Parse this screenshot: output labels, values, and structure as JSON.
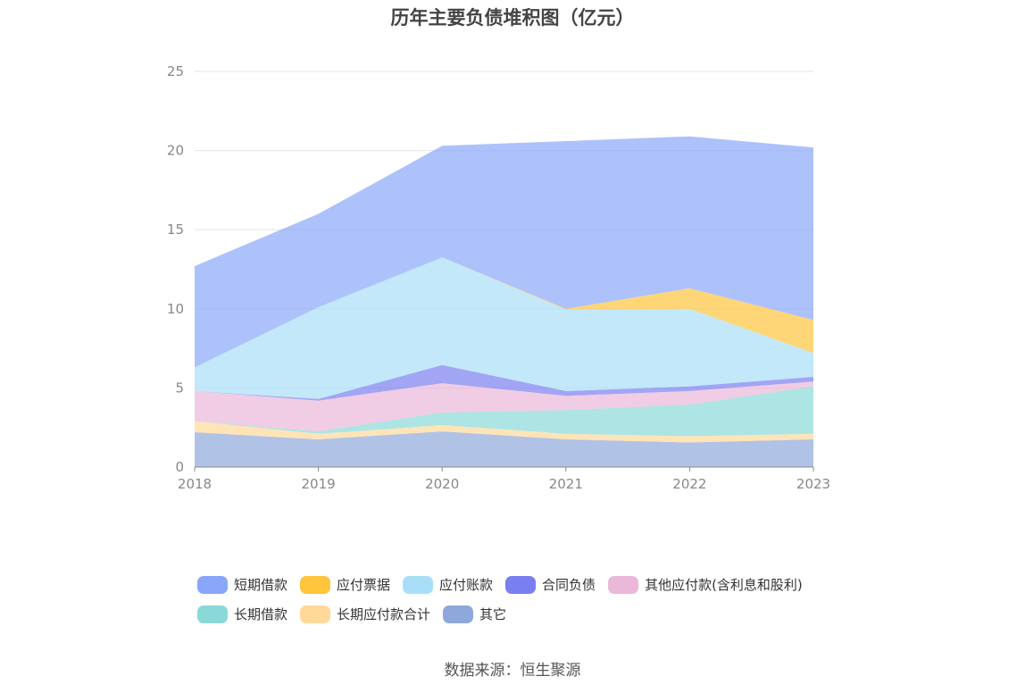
{
  "title": "历年主要负债堆积图（亿元）",
  "source_text": "数据来源：恒生聚源",
  "chart_data": {
    "type": "area",
    "stacked": true,
    "title": "历年主要负债堆积图（亿元）",
    "xlabel": "",
    "ylabel": "",
    "x": [
      "2018",
      "2019",
      "2020",
      "2021",
      "2022",
      "2023"
    ],
    "ylim": [
      0,
      25
    ],
    "yticks": [
      0,
      5,
      10,
      15,
      20,
      25
    ],
    "grid": true,
    "legend_position": "bottom",
    "series": [
      {
        "name": "其它",
        "color": "#8fa8dc",
        "values": [
          2.2,
          1.75,
          2.25,
          1.75,
          1.55,
          1.75
        ]
      },
      {
        "name": "长期应付款合计",
        "color": "#ffd99a",
        "values": [
          0.7,
          0.35,
          0.4,
          0.35,
          0.4,
          0.35
        ]
      },
      {
        "name": "长期借款",
        "color": "#8ad8d8",
        "values": [
          0.0,
          0.15,
          0.8,
          1.5,
          2.0,
          3.0
        ]
      },
      {
        "name": "其他应付款(含利息和股利)",
        "color": "#eab8d8",
        "values": [
          1.9,
          1.95,
          1.85,
          0.9,
          0.85,
          0.3
        ]
      },
      {
        "name": "合同负债",
        "color": "#7a7ff0",
        "values": [
          0.0,
          0.1,
          1.15,
          0.3,
          0.3,
          0.3
        ]
      },
      {
        "name": "应付账款",
        "color": "#a8def8",
        "values": [
          1.5,
          5.8,
          6.8,
          5.15,
          4.9,
          1.5
        ]
      },
      {
        "name": "应付票据",
        "color": "#ffc53d",
        "values": [
          0.0,
          0.0,
          0.0,
          0.05,
          1.3,
          2.1
        ]
      },
      {
        "name": "短期借款",
        "color": "#8aa6fa",
        "values": [
          6.4,
          5.9,
          7.05,
          10.6,
          9.6,
          10.9
        ]
      }
    ]
  },
  "legend_rows": [
    [
      {
        "label": "短期借款",
        "color": "#8aa6fa"
      },
      {
        "label": "应付票据",
        "color": "#ffc53d"
      },
      {
        "label": "应付账款",
        "color": "#a8def8"
      },
      {
        "label": "合同负债",
        "color": "#7a7ff0"
      },
      {
        "label": "其他应付款(含利息和股利)",
        "color": "#eab8d8"
      }
    ],
    [
      {
        "label": "长期借款",
        "color": "#8ad8d8"
      },
      {
        "label": "长期应付款合计",
        "color": "#ffd99a"
      },
      {
        "label": "其它",
        "color": "#8fa8dc"
      }
    ]
  ]
}
